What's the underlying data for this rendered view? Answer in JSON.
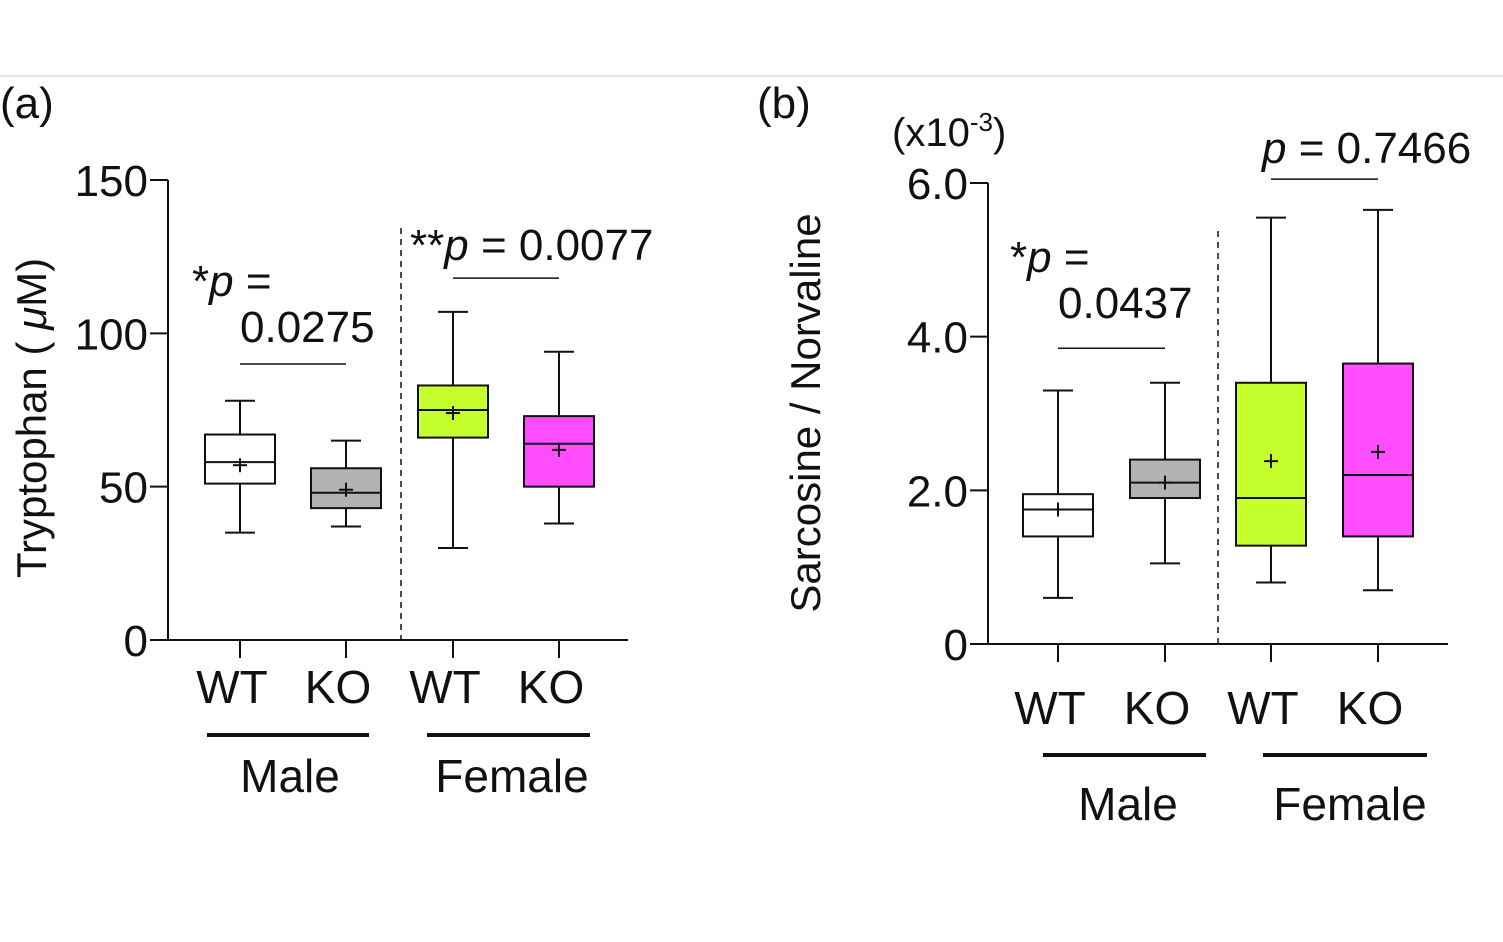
{
  "chart_data": [
    {
      "type": "box",
      "panel_label": "(a)",
      "ylabel": "Tryptophan (μM)",
      "ylabel_parts": {
        "main": "Tryptophan ( ",
        "greek": "μ",
        "unit": "M)"
      },
      "ylim": [
        0,
        150
      ],
      "yticks": [
        0,
        50,
        100,
        150
      ],
      "ytick_labels": [
        "0",
        "50",
        "100",
        "150"
      ],
      "categories": [
        "WT",
        "KO",
        "WT",
        "KO"
      ],
      "groups": [
        {
          "name": "Male",
          "members": [
            0,
            1
          ]
        },
        {
          "name": "Female",
          "members": [
            2,
            3
          ]
        }
      ],
      "boxes": [
        {
          "category": "WT",
          "group": "Male",
          "color": "#ffffff",
          "min": 35,
          "q1": 51,
          "median": 58,
          "q3": 67,
          "max": 78,
          "mean": 57
        },
        {
          "category": "KO",
          "group": "Male",
          "color": "#b3b3b3",
          "min": 37,
          "q1": 43,
          "median": 48,
          "q3": 56,
          "max": 65,
          "mean": 49
        },
        {
          "category": "WT",
          "group": "Female",
          "color": "#c6ff2e",
          "min": 30,
          "q1": 66,
          "median": 75,
          "q3": 83,
          "max": 107,
          "mean": 74
        },
        {
          "category": "KO",
          "group": "Female",
          "color": "#ff4dff",
          "min": 38,
          "q1": 50,
          "median": 64,
          "q3": 73,
          "max": 94,
          "mean": 62
        }
      ],
      "annotations": [
        {
          "prefix": "*",
          "p": "p",
          "eq": " =",
          "value": "0.0275",
          "between": [
            0,
            1
          ],
          "bar_y": 90
        },
        {
          "prefix": "**",
          "p": "p",
          "eq": " = 0.0077",
          "value": "",
          "between": [
            2,
            3
          ],
          "bar_y": 118
        }
      ]
    },
    {
      "type": "box",
      "panel_label": "(b)",
      "ylabel": "Sarcosine / Norvaline",
      "scale_note": {
        "base": "(x10",
        "exp": "-3",
        "close": ")"
      },
      "ylim": [
        0,
        6.0
      ],
      "yticks": [
        0,
        2.0,
        4.0,
        6.0
      ],
      "ytick_labels": [
        "0",
        "2.0",
        "4.0",
        "6.0"
      ],
      "categories": [
        "WT",
        "KO",
        "WT",
        "KO"
      ],
      "groups": [
        {
          "name": "Male",
          "members": [
            0,
            1
          ]
        },
        {
          "name": "Female",
          "members": [
            2,
            3
          ]
        }
      ],
      "boxes": [
        {
          "category": "WT",
          "group": "Male",
          "color": "#ffffff",
          "min": 0.6,
          "q1": 1.4,
          "median": 1.75,
          "q3": 1.95,
          "max": 3.3,
          "mean": 1.75
        },
        {
          "category": "KO",
          "group": "Male",
          "color": "#b3b3b3",
          "min": 1.05,
          "q1": 1.9,
          "median": 2.1,
          "q3": 2.4,
          "max": 3.4,
          "mean": 2.1
        },
        {
          "category": "WT",
          "group": "Female",
          "color": "#c6ff2e",
          "min": 0.8,
          "q1": 1.28,
          "median": 1.9,
          "q3": 3.4,
          "max": 5.55,
          "mean": 2.38
        },
        {
          "category": "KO",
          "group": "Female",
          "color": "#ff4dff",
          "min": 0.7,
          "q1": 1.4,
          "median": 2.2,
          "q3": 3.65,
          "max": 5.65,
          "mean": 2.5
        }
      ],
      "annotations": [
        {
          "prefix": "*",
          "p": "p",
          "eq": " =",
          "value": "0.0437",
          "between": [
            0,
            1
          ],
          "bar_y": 3.85
        },
        {
          "prefix": "",
          "p": "p",
          "eq": " = 0.7466",
          "value": "",
          "between": [
            2,
            3
          ],
          "bar_y": 6.05
        }
      ]
    }
  ]
}
